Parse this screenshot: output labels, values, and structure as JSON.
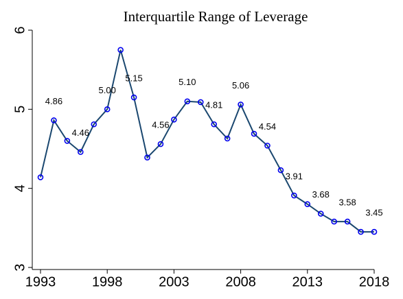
{
  "chart_data": {
    "type": "line",
    "title": "Interquartile Range of Leverage",
    "x": [
      1993,
      1994,
      1995,
      1996,
      1997,
      1998,
      1999,
      2000,
      2001,
      2002,
      2003,
      2004,
      2005,
      2006,
      2007,
      2008,
      2009,
      2010,
      2011,
      2012,
      2013,
      2014,
      2015,
      2016,
      2017,
      2018
    ],
    "series": [
      {
        "name": "Interquartile Range of Leverage",
        "color": "#1a476f",
        "marker_color": "#0000ee",
        "values": [
          4.14,
          4.86,
          4.6,
          4.46,
          4.81,
          5.0,
          5.75,
          5.15,
          4.39,
          4.56,
          4.87,
          5.1,
          5.09,
          4.81,
          4.63,
          5.06,
          4.69,
          4.54,
          4.23,
          3.91,
          3.8,
          3.68,
          3.58,
          3.58,
          3.45,
          3.45
        ],
        "value_labels": [
          null,
          "4.86",
          null,
          "4.46",
          null,
          "5.00",
          null,
          "5.15",
          null,
          "4.56",
          null,
          "5.10",
          null,
          "4.81",
          null,
          "5.06",
          null,
          "4.54",
          null,
          "3.91",
          null,
          "3.68",
          null,
          "3.58",
          null,
          "3.45"
        ]
      }
    ],
    "xlim": [
      1993,
      2018
    ],
    "xticks": [
      1993,
      1998,
      2003,
      2008,
      2013,
      2018
    ],
    "ylim": [
      3,
      6
    ],
    "yticks": [
      3,
      4,
      5,
      6
    ]
  }
}
